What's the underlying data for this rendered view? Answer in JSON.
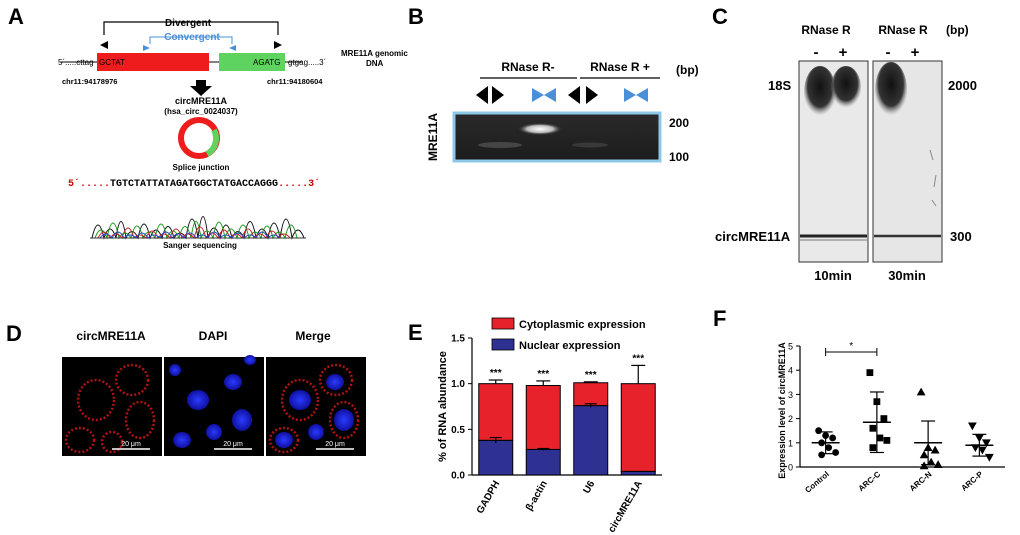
{
  "panels": {
    "a": "A",
    "b": "B",
    "c": "C",
    "d": "D",
    "e": "E",
    "f": "F"
  },
  "panel_a": {
    "divergent": "Divergent",
    "convergent": "Convergent",
    "left_flank": "5´.....cttag",
    "exon_start": "GCTAT",
    "exon_end": "AGATG",
    "right_flank": "gtgag.....3´",
    "genomic_label_1": "MRE11A genomic",
    "genomic_label_2": "DNA",
    "chr_left": "chr11:94178976",
    "chr_right": "chr11:94180604",
    "circ_name": "circMRE11A",
    "circ_id": "(hsa_circ_0024037)",
    "splice_label": "Splice junction",
    "seq_prefix": "5´.....",
    "seq_black_1": "TGTCTATTATAGATG",
    "seq_junction": "G",
    "seq_black_2": "CTATGACCAGGG",
    "seq_suffix": ".....3´",
    "sanger_label": "Sanger sequencing",
    "colors": {
      "exon": "#ee1c1c",
      "exon2": "#5fd35f",
      "blue": "#4a90d9"
    }
  },
  "panel_b": {
    "rnase_minus": "RNase R-",
    "rnase_plus": "RNase R +",
    "bp": "(bp)",
    "gene": "MRE11A",
    "marker_200": "200",
    "marker_100": "100"
  },
  "panel_c": {
    "rnase_1": "RNase R",
    "rnase_2": "RNase R",
    "bp": "(bp)",
    "minus_1": "-",
    "plus_1": "+",
    "minus_2": "-",
    "plus_2": "+",
    "band_18s": "18S",
    "band_circ": "circMRE11A",
    "marker_2000": "2000",
    "marker_300": "300",
    "time_1": "10min",
    "time_2": "30min"
  },
  "panel_d": {
    "col_1": "circMRE11A",
    "col_2": "DAPI",
    "col_3": "Merge",
    "scale": "20 μm"
  },
  "chart_data": [
    {
      "type": "bar",
      "stacked": true,
      "title": "",
      "ylabel": "% of RNA abundance",
      "ylim": [
        0,
        1.5
      ],
      "yticks": [
        "0.0",
        "0.5",
        "1.0",
        "1.5"
      ],
      "categories": [
        "GADPH",
        "β-actin",
        "U6",
        "circMRE11A"
      ],
      "series": [
        {
          "name": "Nuclear expression",
          "color": "#2e3192",
          "values": [
            0.38,
            0.28,
            0.76,
            0.04
          ],
          "err": [
            0.03,
            0.01,
            0.02,
            0.0
          ]
        },
        {
          "name": "Cytoplasmic expression",
          "color": "#e8222a",
          "values": [
            0.62,
            0.7,
            0.25,
            0.96
          ],
          "err": [
            0.04,
            0.05,
            0.01,
            0.2
          ]
        }
      ],
      "significance": [
        "***",
        "***",
        "***",
        "***"
      ]
    },
    {
      "type": "scatter",
      "title": "",
      "ylabel": "Expression level of circMRE11A",
      "ylim": [
        0,
        5
      ],
      "yticks": [
        "0",
        "1",
        "2",
        "3",
        "4",
        "5"
      ],
      "categories": [
        "Control",
        "ARC-C",
        "ARC-N",
        "ARC-P"
      ],
      "markers": [
        "circle",
        "square",
        "triangle-up",
        "triangle-down"
      ],
      "points": [
        [
          1.5,
          1.3,
          1.2,
          1.0,
          0.8,
          0.6,
          0.5
        ],
        [
          3.9,
          2.7,
          2.0,
          1.6,
          1.2,
          1.1,
          0.8
        ],
        [
          3.1,
          0.8,
          0.7,
          0.5,
          0.2,
          0.1,
          0.05
        ],
        [
          1.7,
          1.2,
          1.0,
          0.8,
          0.7,
          0.4
        ]
      ],
      "mean": [
        1.0,
        1.85,
        1.0,
        0.9
      ],
      "sd_low": [
        0.55,
        0.6,
        0.1,
        0.45
      ],
      "sd_high": [
        1.45,
        3.1,
        1.9,
        1.35
      ],
      "significance": {
        "pair": [
          "Control",
          "ARC-C"
        ],
        "label": "*"
      }
    }
  ]
}
